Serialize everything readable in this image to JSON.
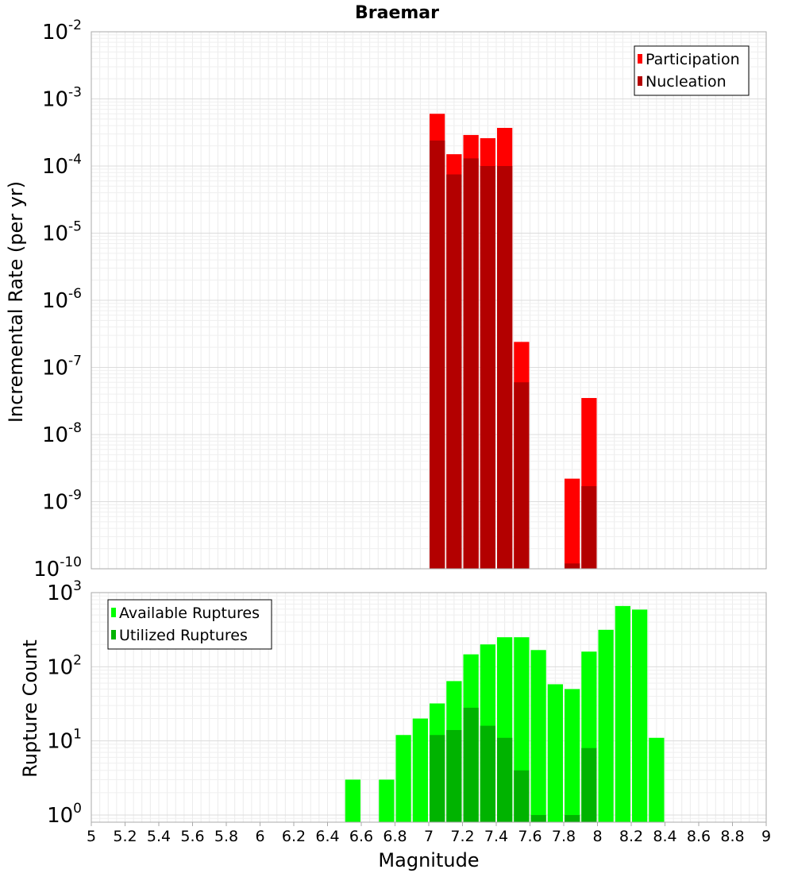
{
  "chart_data": [
    {
      "type": "bar",
      "title": "Braemar",
      "xlabel": "",
      "ylabel": "Incremental Rate (per yr)",
      "yscale": "log",
      "ylim": [
        1e-10,
        0.01
      ],
      "xlim": [
        5,
        9
      ],
      "grid": true,
      "legend_position": "top-right",
      "bin_width": 0.1,
      "x": [
        7.05,
        7.15,
        7.25,
        7.35,
        7.45,
        7.55,
        7.85,
        7.95
      ],
      "y_tick_labels": [
        {
          "base": "10",
          "exp": "-10"
        },
        {
          "base": "10",
          "exp": "-9"
        },
        {
          "base": "10",
          "exp": "-8"
        },
        {
          "base": "10",
          "exp": "-7"
        },
        {
          "base": "10",
          "exp": "-6"
        },
        {
          "base": "10",
          "exp": "-5"
        },
        {
          "base": "10",
          "exp": "-4"
        },
        {
          "base": "10",
          "exp": "-3"
        },
        {
          "base": "10",
          "exp": "-2"
        }
      ],
      "series": [
        {
          "name": "Participation",
          "color": "#ff0000",
          "values": [
            0.0006,
            0.00015,
            0.00029,
            0.00026,
            0.00037,
            2.4e-07,
            2.2e-09,
            3.5e-08
          ]
        },
        {
          "name": "Nucleation",
          "color": "#b30000",
          "values": [
            0.00024,
            7.5e-05,
            0.00013,
            0.0001,
            0.0001,
            6e-08,
            1.2e-10,
            1.7e-09
          ]
        }
      ]
    },
    {
      "type": "bar",
      "title": "",
      "xlabel": "Magnitude",
      "ylabel": "Rupture Count",
      "yscale": "log",
      "ylim": [
        0.8,
        1000
      ],
      "xlim": [
        5,
        9
      ],
      "grid": true,
      "legend_position": "top-left",
      "bin_width": 0.1,
      "x": [
        6.55,
        6.75,
        6.85,
        6.95,
        7.05,
        7.15,
        7.25,
        7.35,
        7.45,
        7.55,
        7.65,
        7.75,
        7.85,
        7.95,
        8.05,
        8.15,
        8.25,
        8.35
      ],
      "x_tick_labels": [
        "5",
        "5.2",
        "5.4",
        "5.6",
        "5.8",
        "6",
        "6.2",
        "6.4",
        "6.6",
        "6.8",
        "7",
        "7.2",
        "7.4",
        "7.6",
        "7.8",
        "8",
        "8.2",
        "8.4",
        "8.6",
        "8.8",
        "9"
      ],
      "y_tick_labels": [
        {
          "base": "10",
          "exp": "0"
        },
        {
          "base": "10",
          "exp": "1"
        },
        {
          "base": "10",
          "exp": "2"
        },
        {
          "base": "10",
          "exp": "3"
        }
      ],
      "series": [
        {
          "name": "Available Ruptures",
          "color": "#00ff00",
          "values": [
            3,
            3,
            12,
            20,
            32,
            64,
            147,
            200,
            250,
            250,
            168,
            58,
            50,
            160,
            315,
            660,
            590,
            11
          ]
        },
        {
          "name": "Utilized Ruptures",
          "color": "#00b300",
          "values": [
            0,
            0,
            0,
            0,
            12,
            14,
            28,
            16,
            11,
            4,
            1,
            0,
            1,
            8,
            0,
            0,
            0,
            0
          ]
        }
      ]
    }
  ]
}
